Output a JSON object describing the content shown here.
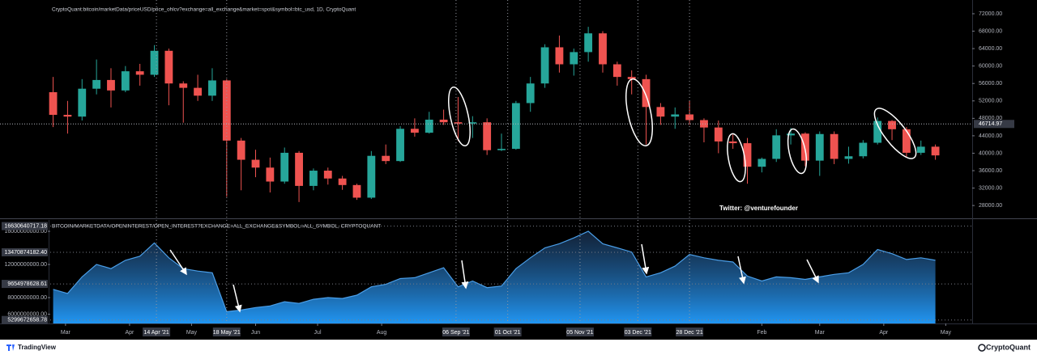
{
  "chart_data": [
    {
      "type": "candlestick",
      "title": "CryptoQuant:bitcoin/marketData/priceUSD/price_ohlcv?exchange=all_exchange&market=spot&symbol=btc_usd, 1D, CryptoQuant",
      "x": [
        3,
        10,
        17,
        24,
        31,
        38,
        45,
        52,
        59,
        66,
        73,
        80,
        87,
        94,
        101,
        108,
        115,
        122,
        129,
        136,
        143,
        150,
        157,
        164,
        171,
        178,
        185,
        192,
        199,
        206,
        213,
        220,
        227,
        234,
        241,
        248,
        255,
        262,
        269,
        276,
        283,
        290,
        297,
        304,
        311,
        318,
        325,
        332,
        339,
        346,
        353,
        360,
        367,
        374,
        381,
        388,
        395,
        402,
        409,
        416,
        423,
        430
      ],
      "open": [
        54000,
        48800,
        48400,
        54800,
        56800,
        54400,
        58800,
        58000,
        63500,
        56000,
        55000,
        53200,
        56700,
        42900,
        38500,
        36700,
        33500,
        40100,
        32500,
        36000,
        34200,
        32700,
        29800,
        39400,
        38200,
        45600,
        44700,
        47700,
        47100,
        46800,
        47100,
        40700,
        41000,
        51500,
        56000,
        64300,
        60400,
        63200,
        67500,
        60400,
        57500,
        57000,
        50600,
        48400,
        48900,
        47600,
        45900,
        42700,
        42300,
        36900,
        38700,
        44100,
        44500,
        38300,
        44400,
        38700,
        39300,
        42400,
        47400,
        45500,
        40100,
        41500
      ],
      "high": [
        57500,
        52000,
        57000,
        61500,
        59500,
        60000,
        60500,
        64800,
        64000,
        56500,
        58000,
        59500,
        57000,
        43500,
        40800,
        39000,
        41300,
        40500,
        36500,
        36700,
        34800,
        33000,
        40500,
        42000,
        46200,
        48000,
        49500,
        50000,
        52900,
        48500,
        48000,
        44500,
        52000,
        57500,
        65000,
        67000,
        64000,
        69000,
        68000,
        61000,
        59000,
        58000,
        51500,
        50500,
        52000,
        48000,
        47500,
        44300,
        43500,
        39000,
        45500,
        45800,
        44800,
        45000,
        45000,
        41500,
        43000,
        48200,
        47600,
        46000,
        42900,
        42000
      ],
      "low": [
        46000,
        44500,
        47500,
        53500,
        50500,
        54000,
        55500,
        57500,
        51000,
        47000,
        52000,
        52000,
        30000,
        31500,
        34500,
        31000,
        33000,
        28800,
        31500,
        32800,
        31600,
        29300,
        29500,
        37500,
        38000,
        43800,
        44500,
        46500,
        42800,
        43500,
        39600,
        40500,
        40800,
        49500,
        55000,
        58500,
        57800,
        61000,
        58500,
        55500,
        53500,
        42000,
        46500,
        45600,
        46500,
        42500,
        40000,
        41000,
        33000,
        35600,
        38000,
        42000,
        37000,
        34800,
        37500,
        37600,
        38800,
        42000,
        43000,
        39200,
        39600,
        38500
      ],
      "close": [
        48800,
        48400,
        54800,
        56800,
        54400,
        58800,
        58000,
        63500,
        56000,
        55000,
        53200,
        56700,
        42900,
        38500,
        36700,
        33500,
        40100,
        32500,
        36000,
        34200,
        32700,
        29800,
        39400,
        38200,
        45600,
        44700,
        47700,
        47100,
        46800,
        47100,
        40700,
        41000,
        51500,
        56000,
        64300,
        60400,
        63200,
        67500,
        60400,
        57500,
        57000,
        50600,
        48400,
        48900,
        47600,
        45900,
        42700,
        42300,
        36900,
        38700,
        44100,
        44500,
        38300,
        44400,
        38700,
        39300,
        42400,
        47400,
        45500,
        40100,
        41500,
        39500
      ],
      "up_color": "#26a69a",
      "down_color": "#ef5350",
      "xlim": [
        1.6,
        447.8
      ],
      "ylim": [
        25060,
        75150
      ],
      "yticks": [
        {
          "value": 72000,
          "label": "72000.00"
        },
        {
          "value": 68000,
          "label": "68000.00"
        },
        {
          "value": 64000,
          "label": "64000.00"
        },
        {
          "value": 60000,
          "label": "60000.00"
        },
        {
          "value": 56000,
          "label": "56000.00"
        },
        {
          "value": 52000,
          "label": "52000.00"
        },
        {
          "value": 48000,
          "label": "48000.00"
        },
        {
          "value": 44000,
          "label": "44000.00"
        },
        {
          "value": 40000,
          "label": "40000.00"
        },
        {
          "value": 36000,
          "label": "36000.00"
        },
        {
          "value": 32000,
          "label": "32000.00"
        },
        {
          "value": 28000,
          "label": "28000.00"
        }
      ],
      "last_price": 46714.97,
      "annotation": "Twitter: @venturefounder",
      "grid": false
    },
    {
      "type": "area",
      "title": "BITCOIN/MARKETDATA/OPENINTEREST/OPEN_INTEREST?EXCHANGE=ALL_EXCHANGE&SYMBOL=ALL_SYMBOL, CRYPTOQUANT",
      "x": [
        3,
        10,
        17,
        24,
        31,
        38,
        45,
        52,
        59,
        66,
        73,
        80,
        87,
        94,
        101,
        108,
        115,
        122,
        129,
        136,
        143,
        150,
        157,
        164,
        171,
        178,
        185,
        192,
        199,
        206,
        213,
        220,
        227,
        234,
        241,
        248,
        255,
        262,
        269,
        276,
        283,
        290,
        297,
        304,
        311,
        318,
        325,
        332,
        339,
        346,
        353,
        360,
        367,
        374,
        381,
        388,
        395,
        402,
        409,
        416,
        423,
        430
      ],
      "series": [
        {
          "color": "#4a9ee8",
          "values": [
            9000000000,
            8500000000,
            10500000000,
            12000000000,
            11500000000,
            12500000000,
            13000000000,
            14600000000,
            12800000000,
            11500000000,
            11200000000,
            11000000000,
            6300000000,
            6500000000,
            6800000000,
            7000000000,
            7500000000,
            7300000000,
            7800000000,
            8000000000,
            7900000000,
            8300000000,
            9300000000,
            9600000000,
            10300000000,
            10400000000,
            11000000000,
            11600000000,
            9300000000,
            10000000000,
            9200000000,
            9400000000,
            11500000000,
            12800000000,
            14000000000,
            14500000000,
            15200000000,
            16000000000,
            14500000000,
            14000000000,
            13500000000,
            10500000000,
            11000000000,
            11800000000,
            13200000000,
            12800000000,
            12500000000,
            12300000000,
            10600000000,
            10000000000,
            10500000000,
            10400000000,
            10200000000,
            10500000000,
            10800000000,
            11000000000,
            12000000000,
            13800000000,
            13300000000,
            12600000000,
            12800000000,
            12500000000
          ]
        }
      ],
      "xlim": [
        1.6,
        447.8
      ],
      "ylim": [
        4880000000,
        17370000000
      ],
      "yticks": [
        {
          "value": 16000000000,
          "label": "16000000000.00"
        },
        {
          "value": 12000000000,
          "label": "12000000000.00"
        },
        {
          "value": 8000000000,
          "label": "8000000000.00"
        },
        {
          "value": 6000000000,
          "label": "6000000000.00"
        }
      ],
      "levels": [
        {
          "value": 16630640717.18,
          "label": "16630640717.18"
        },
        {
          "value": 13470874182.4,
          "label": "13470874182.40"
        },
        {
          "value": 9654978628.61,
          "label": "9654978628.61"
        },
        {
          "value": 5299672658.78,
          "label": "5299672658.78"
        }
      ],
      "xticks": [
        {
          "value": 9,
          "label": "Mar"
        },
        {
          "value": 40,
          "label": "Apr"
        },
        {
          "value": 70,
          "label": "May"
        },
        {
          "value": 101,
          "label": "Jun"
        },
        {
          "value": 131,
          "label": "Jul"
        },
        {
          "value": 162,
          "label": "Aug"
        },
        {
          "value": 346,
          "label": "Feb"
        },
        {
          "value": 374,
          "label": "Mar"
        },
        {
          "value": 405,
          "label": "Apr"
        },
        {
          "value": 435,
          "label": "May"
        }
      ],
      "xmarkers": [
        {
          "value": 53,
          "label": "14 Apr '21"
        },
        {
          "value": 87,
          "label": "18 May '21"
        },
        {
          "value": 198,
          "label": "06 Sep '21"
        },
        {
          "value": 223,
          "label": "01 Oct '21"
        },
        {
          "value": 258,
          "label": "05 Nov '21"
        },
        {
          "value": 286,
          "label": "03 Dec '21"
        },
        {
          "value": 311,
          "label": "28 Dec '21"
        }
      ],
      "grid": false
    }
  ],
  "footer": {
    "left": "TradingView",
    "right": "CryptoQuant"
  }
}
